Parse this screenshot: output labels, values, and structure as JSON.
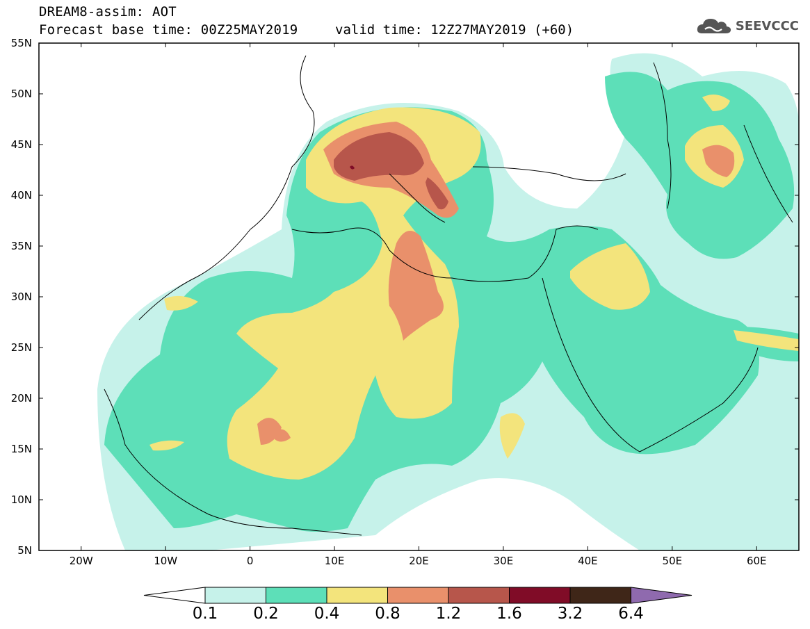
{
  "header": {
    "title": "DREAM8-assim: AOT",
    "base_time": "Forecast base time: 00Z25MAY2019",
    "valid_time": "valid time: 12Z27MAY2019 (+60)",
    "logo_text": "SEEVCCC"
  },
  "map": {
    "extent": {
      "lon_min": -25,
      "lon_max": 65,
      "lat_min": 5,
      "lat_max": 55
    },
    "lat_labels": [
      "55N",
      "50N",
      "45N",
      "40N",
      "35N",
      "30N",
      "25N",
      "20N",
      "15N",
      "10N",
      "5N"
    ],
    "lon_labels": [
      "20W",
      "10W",
      "0",
      "10E",
      "20E",
      "30E",
      "40E",
      "50E",
      "60E"
    ]
  },
  "colorbar": {
    "labels": [
      "0.1",
      "0.2",
      "0.4",
      "0.8",
      "1.2",
      "1.6",
      "3.2",
      "6.4"
    ],
    "colors": [
      "#c6f2ea",
      "#5ddfb8",
      "#f3e47c",
      "#e9906b",
      "#b7564b",
      "#800c27",
      "#3f2618",
      "#8f6aae"
    ]
  }
}
